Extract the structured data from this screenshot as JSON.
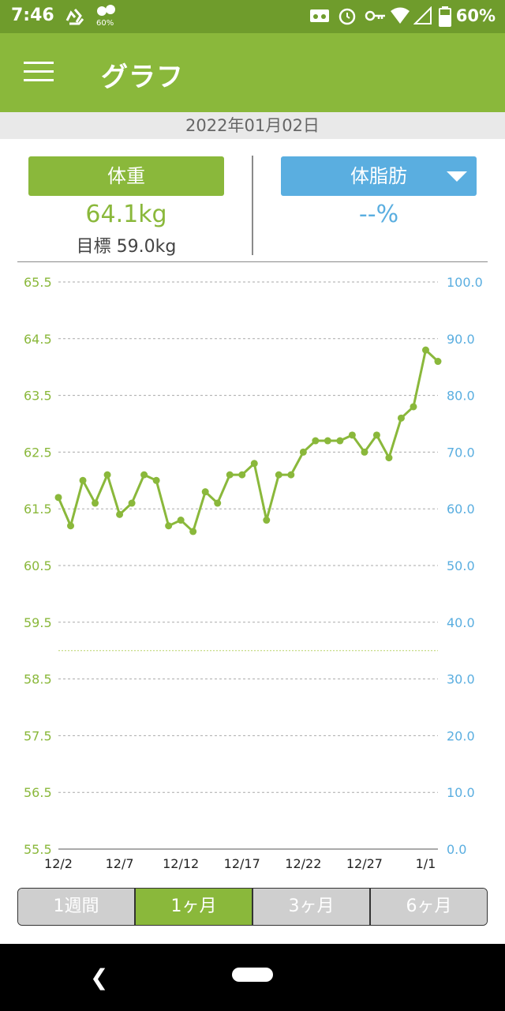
{
  "status": {
    "time": "7:46",
    "battery_text": "60%",
    "mini_badge": "60%",
    "icons": [
      "recycle-icon",
      "fruit-battery-icon",
      "voicemail-icon",
      "alarm-icon",
      "key-icon",
      "wifi-icon",
      "signal-icon",
      "battery-icon"
    ]
  },
  "appbar": {
    "title": "グラフ",
    "menu_icon": "hamburger-menu-icon"
  },
  "date": "2022年01月02日",
  "metrics": {
    "weight_label": "体重",
    "weight_value": "64.1kg",
    "goal_text": "目標 59.0kg",
    "fat_label": "体脂肪",
    "fat_value": "--%"
  },
  "colors": {
    "accent_green": "#8ab83b",
    "accent_blue": "#5aaee0",
    "status_green": "#6f9c2c"
  },
  "chart_data": {
    "type": "line",
    "title": "",
    "xlabel": "",
    "ylabel": "",
    "y_left_ticks": [
      "65.5",
      "64.5",
      "63.5",
      "62.5",
      "61.5",
      "60.5",
      "59.5",
      "58.5",
      "57.5",
      "56.5",
      "55.5"
    ],
    "y_right_ticks": [
      "100.0",
      "90.0",
      "80.0",
      "70.0",
      "60.0",
      "50.0",
      "40.0",
      "30.0",
      "20.0",
      "10.0",
      "0.0"
    ],
    "ylim_left": [
      55.5,
      65.5
    ],
    "ylim_right": [
      0,
      100
    ],
    "x_tick_labels": [
      "12/2",
      "12/7",
      "12/12",
      "12/17",
      "12/22",
      "12/27",
      "1/1"
    ],
    "goal_line": 59.0,
    "grid": true,
    "series": [
      {
        "values": [
          61.7,
          61.2,
          62.0,
          61.6,
          62.1,
          61.4,
          61.6,
          62.1,
          62.0,
          61.2,
          61.3,
          61.1,
          61.8,
          61.6,
          62.1,
          62.1,
          62.3,
          61.3,
          62.1,
          62.1,
          62.5,
          62.7,
          62.7,
          62.7,
          62.8,
          62.5,
          62.8,
          62.4,
          63.1,
          63.3,
          64.3,
          64.1
        ]
      }
    ]
  },
  "tabs": [
    {
      "label": "1週間",
      "active": false
    },
    {
      "label": "1ヶ月",
      "active": true
    },
    {
      "label": "3ヶ月",
      "active": false
    },
    {
      "label": "6ヶ月",
      "active": false
    }
  ]
}
